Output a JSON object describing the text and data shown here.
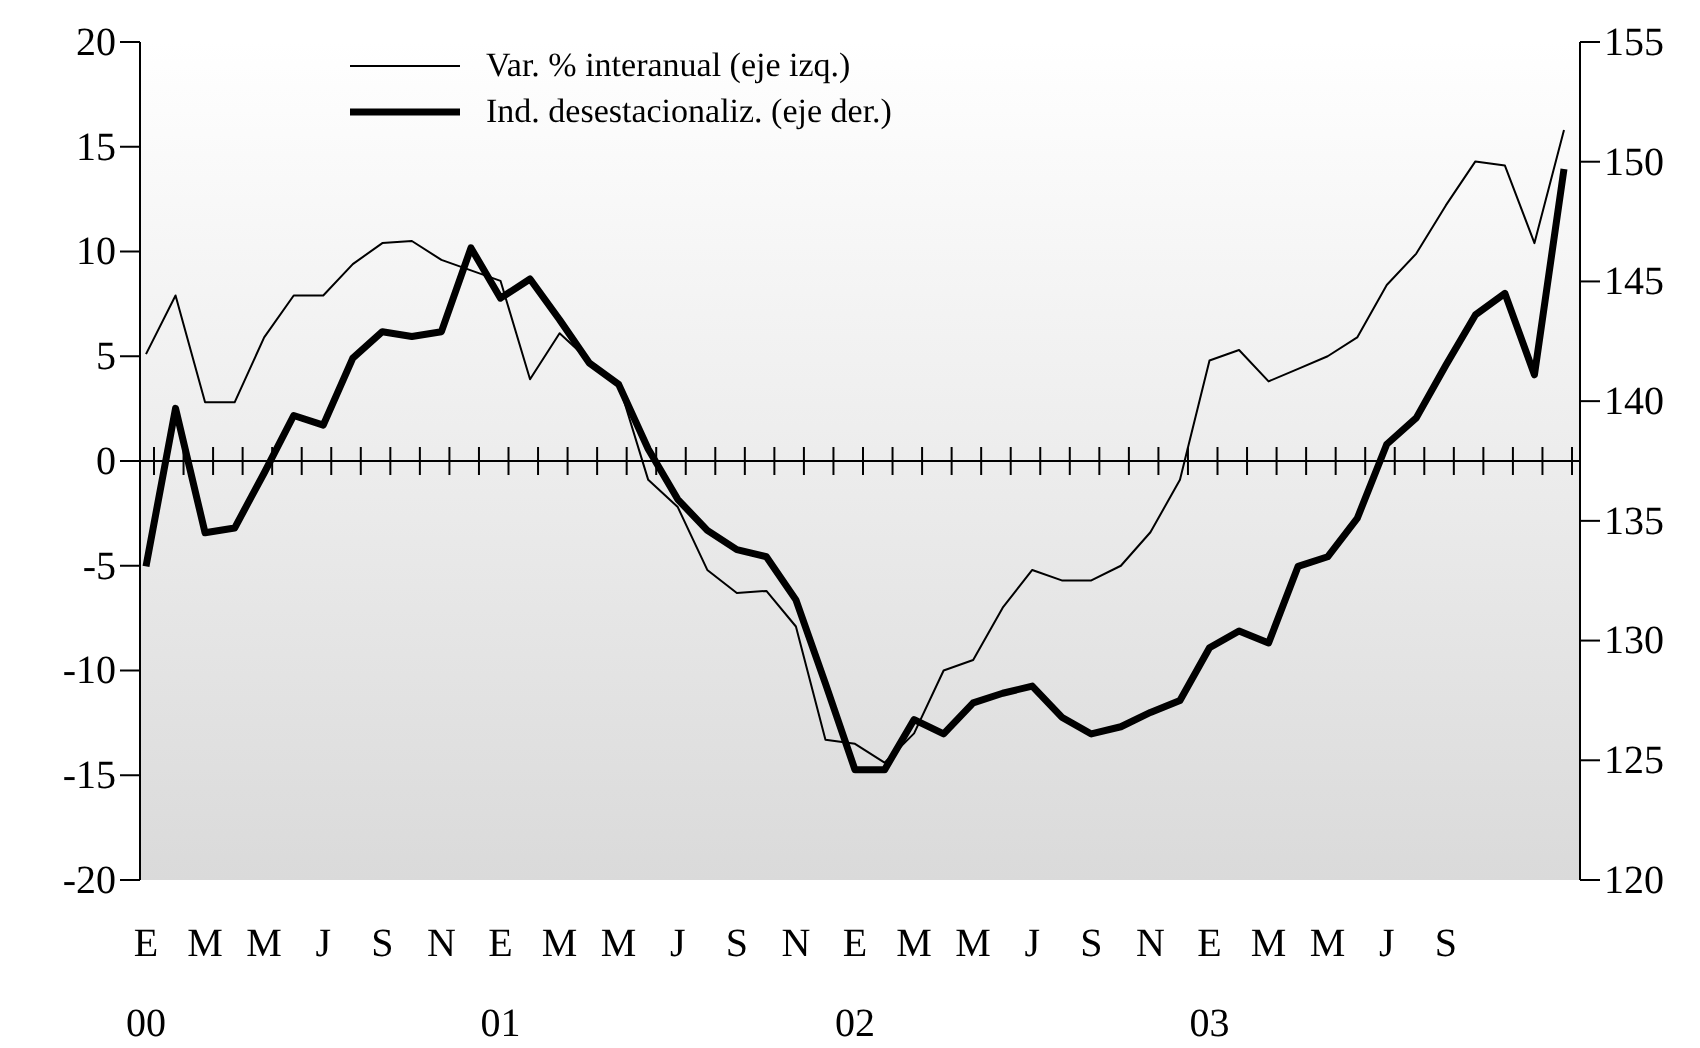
{
  "chart_data": {
    "type": "line",
    "categories": [
      "E\n00",
      null,
      "M",
      null,
      "M",
      null,
      "J",
      null,
      "S",
      null,
      "N",
      null,
      "E\n01",
      null,
      "M",
      null,
      "M",
      null,
      "J",
      null,
      "S",
      null,
      "N",
      null,
      "E\n02",
      null,
      "M",
      null,
      "M",
      null,
      "J",
      null,
      "S",
      null,
      "N",
      null,
      "E\n03",
      null,
      "M",
      null,
      "M",
      null,
      "J",
      null,
      "S",
      null,
      null,
      null,
      null
    ],
    "series": [
      {
        "name": "Var. % interanual (eje izq.)",
        "color": "#000000",
        "values": [
          5.1,
          7.9,
          2.8,
          2.8,
          5.9,
          7.9,
          7.9,
          9.4,
          10.4,
          10.5,
          9.6,
          9.1,
          8.6,
          3.9,
          6.1,
          4.8,
          3.7,
          -0.9,
          -2.2,
          -5.2,
          -6.3,
          -6.2,
          -7.9,
          -13.3,
          -13.5,
          -14.4,
          -13.0,
          -10.0,
          -9.5,
          -7.0,
          -5.2,
          -5.7,
          -5.7,
          -5.0,
          -3.4,
          -0.9,
          4.8,
          5.3,
          3.8,
          4.4,
          5.0,
          5.9,
          8.4,
          9.9,
          12.2,
          14.3,
          14.1,
          10.4,
          15.8
        ]
      },
      {
        "name": "Ind. desestacionaliz. (eje der.)",
        "color": "#000000",
        "axis": "y2",
        "values": [
          133.1,
          139.7,
          134.5,
          134.7,
          137.0,
          139.4,
          139.0,
          141.8,
          142.9,
          142.7,
          142.9,
          146.4,
          144.3,
          145.1,
          143.4,
          141.6,
          140.7,
          138.0,
          135.9,
          134.6,
          133.8,
          133.5,
          131.7,
          128.2,
          124.6,
          124.6,
          126.7,
          126.1,
          127.4,
          127.8,
          128.1,
          126.8,
          126.1,
          126.4,
          127.0,
          127.5,
          129.7,
          130.4,
          129.9,
          133.1,
          133.5,
          135.1,
          138.2,
          139.3,
          141.5,
          143.6,
          144.5,
          141.1,
          149.7
        ]
      }
    ],
    "ylim": [
      -20,
      20
    ],
    "yticks": [
      -20,
      -15,
      -10,
      -5,
      0,
      5,
      10,
      15,
      20
    ],
    "y2lim": [
      120,
      155
    ],
    "y2ticks": [
      120,
      125,
      130,
      135,
      140,
      145,
      150,
      155
    ],
    "legend": "top left"
  }
}
